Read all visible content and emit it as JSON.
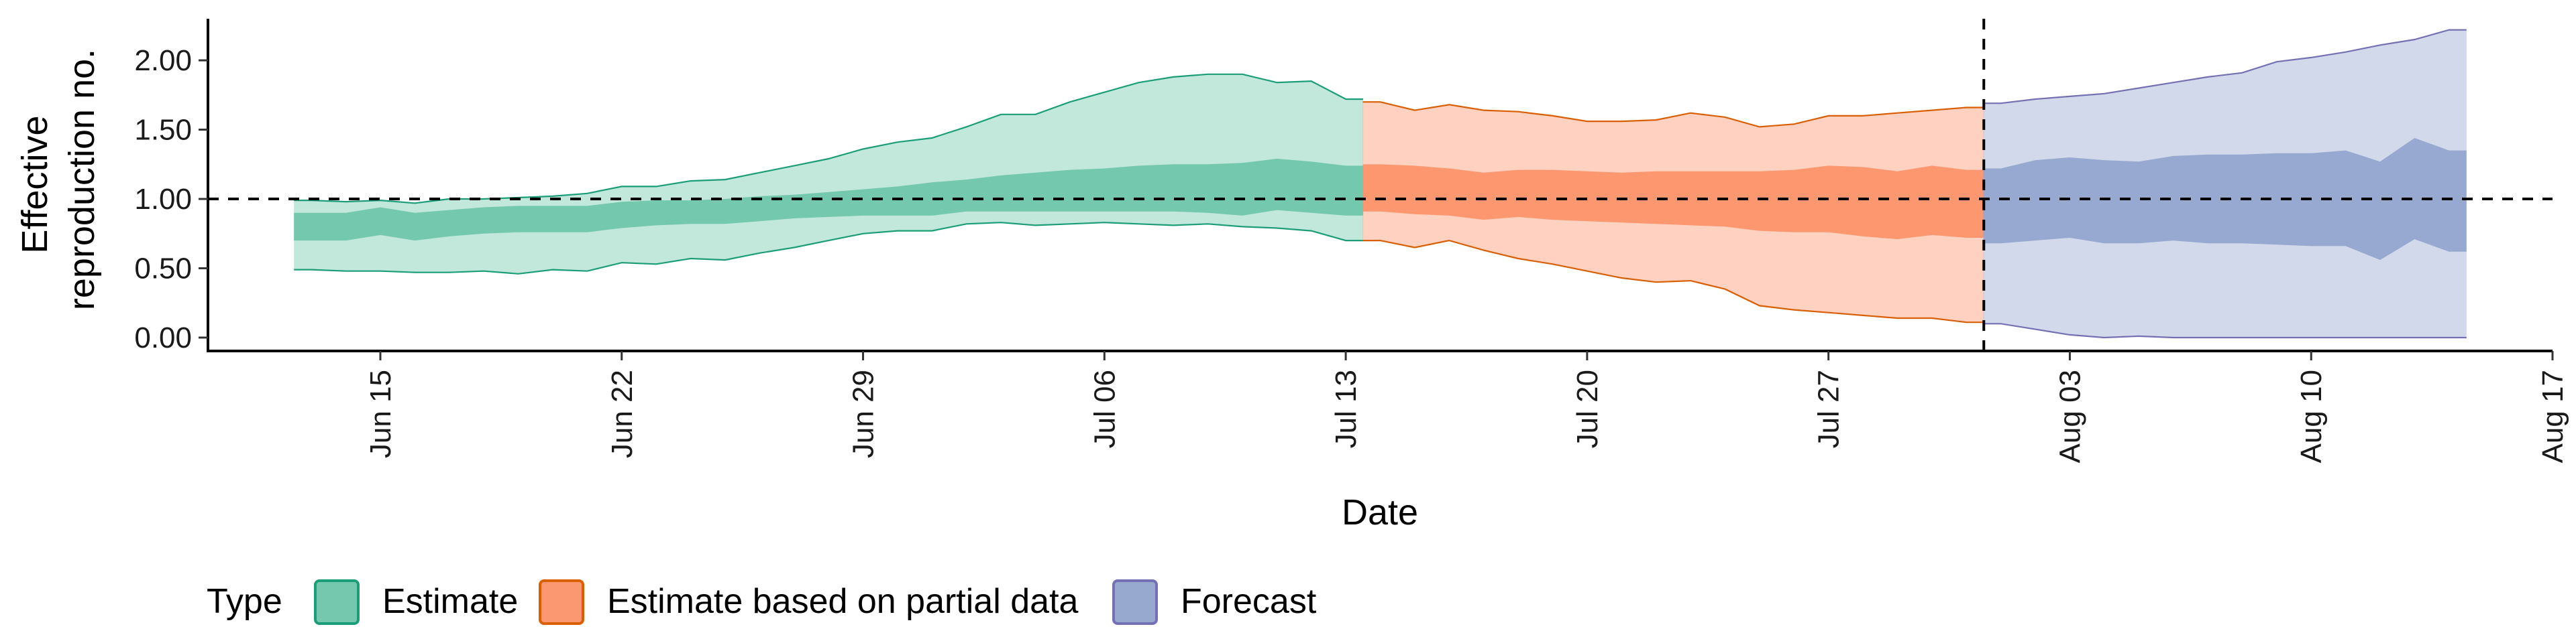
{
  "chart_data": {
    "type": "area",
    "xlabel": "Date",
    "ylabel_lines": [
      "Effective",
      "reproduction no."
    ],
    "ylim": [
      0,
      2.3
    ],
    "xlim": [
      "2020-06-10",
      "2020-08-17"
    ],
    "x_ticks": [
      {
        "date": "2020-06-15",
        "label": "Jun 15"
      },
      {
        "date": "2020-06-22",
        "label": "Jun 22"
      },
      {
        "date": "2020-06-29",
        "label": "Jun 29"
      },
      {
        "date": "2020-07-06",
        "label": "Jul 06"
      },
      {
        "date": "2020-07-13",
        "label": "Jul 13"
      },
      {
        "date": "2020-07-20",
        "label": "Jul 20"
      },
      {
        "date": "2020-07-27",
        "label": "Jul 27"
      },
      {
        "date": "2020-08-03",
        "label": "Aug 03"
      },
      {
        "date": "2020-08-10",
        "label": "Aug 10"
      },
      {
        "date": "2020-08-17",
        "label": "Aug 17"
      }
    ],
    "y_ticks": [
      {
        "value": 0,
        "label": "0.00"
      },
      {
        "value": 0.5,
        "label": "0.50"
      },
      {
        "value": 1,
        "label": "1.00"
      },
      {
        "value": 1.5,
        "label": "1.50"
      },
      {
        "value": 2,
        "label": "2.00"
      }
    ],
    "reference_hline": 1.0,
    "reference_vline": "2020-07-31",
    "legend": {
      "title": "Type",
      "position": "bottom"
    },
    "series": [
      {
        "name": "Estimate",
        "fill": "#66c2a5",
        "stroke": "#1b9e77",
        "points": [
          {
            "date": "2020-06-13",
            "lo90": 0.49,
            "lo50": 0.7,
            "hi50": 0.9,
            "hi90": 0.99
          },
          {
            "date": "2020-06-14",
            "lo90": 0.48,
            "lo50": 0.7,
            "hi50": 0.9,
            "hi90": 0.98
          },
          {
            "date": "2020-06-15",
            "lo90": 0.48,
            "lo50": 0.74,
            "hi50": 0.94,
            "hi90": 0.99
          },
          {
            "date": "2020-06-16",
            "lo90": 0.47,
            "lo50": 0.7,
            "hi50": 0.9,
            "hi90": 0.97
          },
          {
            "date": "2020-06-17",
            "lo90": 0.47,
            "lo50": 0.73,
            "hi50": 0.92,
            "hi90": 1.0
          },
          {
            "date": "2020-06-18",
            "lo90": 0.48,
            "lo50": 0.75,
            "hi50": 0.94,
            "hi90": 1.0
          },
          {
            "date": "2020-06-19",
            "lo90": 0.46,
            "lo50": 0.76,
            "hi50": 0.95,
            "hi90": 1.01
          },
          {
            "date": "2020-06-20",
            "lo90": 0.49,
            "lo50": 0.76,
            "hi50": 0.95,
            "hi90": 1.02
          },
          {
            "date": "2020-06-21",
            "lo90": 0.48,
            "lo50": 0.76,
            "hi50": 0.95,
            "hi90": 1.04
          },
          {
            "date": "2020-06-22",
            "lo90": 0.54,
            "lo50": 0.79,
            "hi50": 0.98,
            "hi90": 1.09
          },
          {
            "date": "2020-06-23",
            "lo90": 0.53,
            "lo50": 0.81,
            "hi50": 0.99,
            "hi90": 1.09
          },
          {
            "date": "2020-06-24",
            "lo90": 0.57,
            "lo50": 0.82,
            "hi50": 0.99,
            "hi90": 1.13
          },
          {
            "date": "2020-06-25",
            "lo90": 0.56,
            "lo50": 0.82,
            "hi50": 1.0,
            "hi90": 1.14
          },
          {
            "date": "2020-06-26",
            "lo90": 0.61,
            "lo50": 0.84,
            "hi50": 1.02,
            "hi90": 1.19
          },
          {
            "date": "2020-06-27",
            "lo90": 0.65,
            "lo50": 0.86,
            "hi50": 1.03,
            "hi90": 1.24
          },
          {
            "date": "2020-06-28",
            "lo90": 0.7,
            "lo50": 0.87,
            "hi50": 1.05,
            "hi90": 1.29
          },
          {
            "date": "2020-06-29",
            "lo90": 0.75,
            "lo50": 0.88,
            "hi50": 1.07,
            "hi90": 1.36
          },
          {
            "date": "2020-06-30",
            "lo90": 0.77,
            "lo50": 0.88,
            "hi50": 1.09,
            "hi90": 1.41
          },
          {
            "date": "2020-07-01",
            "lo90": 0.77,
            "lo50": 0.88,
            "hi50": 1.12,
            "hi90": 1.44
          },
          {
            "date": "2020-07-02",
            "lo90": 0.82,
            "lo50": 0.91,
            "hi50": 1.14,
            "hi90": 1.52
          },
          {
            "date": "2020-07-03",
            "lo90": 0.83,
            "lo50": 0.91,
            "hi50": 1.17,
            "hi90": 1.61
          },
          {
            "date": "2020-07-04",
            "lo90": 0.81,
            "lo50": 0.91,
            "hi50": 1.19,
            "hi90": 1.61
          },
          {
            "date": "2020-07-05",
            "lo90": 0.82,
            "lo50": 0.91,
            "hi50": 1.21,
            "hi90": 1.7
          },
          {
            "date": "2020-07-06",
            "lo90": 0.83,
            "lo50": 0.91,
            "hi50": 1.22,
            "hi90": 1.77
          },
          {
            "date": "2020-07-07",
            "lo90": 0.82,
            "lo50": 0.91,
            "hi50": 1.24,
            "hi90": 1.84
          },
          {
            "date": "2020-07-08",
            "lo90": 0.81,
            "lo50": 0.91,
            "hi50": 1.25,
            "hi90": 1.88
          },
          {
            "date": "2020-07-09",
            "lo90": 0.82,
            "lo50": 0.9,
            "hi50": 1.25,
            "hi90": 1.9
          },
          {
            "date": "2020-07-10",
            "lo90": 0.8,
            "lo50": 0.88,
            "hi50": 1.26,
            "hi90": 1.9
          },
          {
            "date": "2020-07-11",
            "lo90": 0.79,
            "lo50": 0.92,
            "hi50": 1.29,
            "hi90": 1.84
          },
          {
            "date": "2020-07-12",
            "lo90": 0.77,
            "lo50": 0.9,
            "hi50": 1.27,
            "hi90": 1.85
          },
          {
            "date": "2020-07-13",
            "lo90": 0.7,
            "lo50": 0.88,
            "hi50": 1.24,
            "hi90": 1.72
          }
        ]
      },
      {
        "name": "Estimate based on partial data",
        "fill": "#fc8d62",
        "stroke": "#d95f02",
        "points": [
          {
            "date": "2020-07-14",
            "lo90": 0.7,
            "lo50": 0.91,
            "hi50": 1.25,
            "hi90": 1.7
          },
          {
            "date": "2020-07-15",
            "lo90": 0.65,
            "lo50": 0.89,
            "hi50": 1.24,
            "hi90": 1.64
          },
          {
            "date": "2020-07-16",
            "lo90": 0.7,
            "lo50": 0.88,
            "hi50": 1.22,
            "hi90": 1.68
          },
          {
            "date": "2020-07-17",
            "lo90": 0.63,
            "lo50": 0.85,
            "hi50": 1.19,
            "hi90": 1.64
          },
          {
            "date": "2020-07-18",
            "lo90": 0.57,
            "lo50": 0.87,
            "hi50": 1.21,
            "hi90": 1.63
          },
          {
            "date": "2020-07-19",
            "lo90": 0.53,
            "lo50": 0.85,
            "hi50": 1.21,
            "hi90": 1.6
          },
          {
            "date": "2020-07-20",
            "lo90": 0.48,
            "lo50": 0.84,
            "hi50": 1.2,
            "hi90": 1.56
          },
          {
            "date": "2020-07-21",
            "lo90": 0.43,
            "lo50": 0.83,
            "hi50": 1.19,
            "hi90": 1.56
          },
          {
            "date": "2020-07-22",
            "lo90": 0.4,
            "lo50": 0.82,
            "hi50": 1.2,
            "hi90": 1.57
          },
          {
            "date": "2020-07-23",
            "lo90": 0.41,
            "lo50": 0.81,
            "hi50": 1.2,
            "hi90": 1.62
          },
          {
            "date": "2020-07-24",
            "lo90": 0.35,
            "lo50": 0.8,
            "hi50": 1.2,
            "hi90": 1.59
          },
          {
            "date": "2020-07-25",
            "lo90": 0.23,
            "lo50": 0.77,
            "hi50": 1.2,
            "hi90": 1.52
          },
          {
            "date": "2020-07-26",
            "lo90": 0.2,
            "lo50": 0.76,
            "hi50": 1.21,
            "hi90": 1.54
          },
          {
            "date": "2020-07-27",
            "lo90": 0.18,
            "lo50": 0.76,
            "hi50": 1.24,
            "hi90": 1.6
          },
          {
            "date": "2020-07-28",
            "lo90": 0.16,
            "lo50": 0.73,
            "hi50": 1.23,
            "hi90": 1.6
          },
          {
            "date": "2020-07-29",
            "lo90": 0.14,
            "lo50": 0.71,
            "hi50": 1.2,
            "hi90": 1.62
          },
          {
            "date": "2020-07-30",
            "lo90": 0.14,
            "lo50": 0.74,
            "hi50": 1.24,
            "hi90": 1.64
          },
          {
            "date": "2020-07-31",
            "lo90": 0.11,
            "lo50": 0.72,
            "hi50": 1.21,
            "hi90": 1.66
          }
        ]
      },
      {
        "name": "Forecast",
        "fill": "#8da0cb",
        "stroke": "#7570b3",
        "points": [
          {
            "date": "2020-08-01",
            "lo90": 0.1,
            "lo50": 0.68,
            "hi50": 1.22,
            "hi90": 1.69
          },
          {
            "date": "2020-08-02",
            "lo90": 0.06,
            "lo50": 0.7,
            "hi50": 1.28,
            "hi90": 1.72
          },
          {
            "date": "2020-08-03",
            "lo90": 0.02,
            "lo50": 0.72,
            "hi50": 1.3,
            "hi90": 1.74
          },
          {
            "date": "2020-08-04",
            "lo90": 0.0,
            "lo50": 0.68,
            "hi50": 1.28,
            "hi90": 1.76
          },
          {
            "date": "2020-08-05",
            "lo90": 0.01,
            "lo50": 0.68,
            "hi50": 1.27,
            "hi90": 1.8
          },
          {
            "date": "2020-08-06",
            "lo90": 0.0,
            "lo50": 0.7,
            "hi50": 1.31,
            "hi90": 1.84
          },
          {
            "date": "2020-08-07",
            "lo90": 0.0,
            "lo50": 0.68,
            "hi50": 1.32,
            "hi90": 1.88
          },
          {
            "date": "2020-08-08",
            "lo90": 0.0,
            "lo50": 0.68,
            "hi50": 1.32,
            "hi90": 1.91
          },
          {
            "date": "2020-08-09",
            "lo90": 0.0,
            "lo50": 0.67,
            "hi50": 1.33,
            "hi90": 1.99
          },
          {
            "date": "2020-08-10",
            "lo90": 0.0,
            "lo50": 0.66,
            "hi50": 1.33,
            "hi90": 2.02
          },
          {
            "date": "2020-08-11",
            "lo90": 0.0,
            "lo50": 0.66,
            "hi50": 1.35,
            "hi90": 2.06
          },
          {
            "date": "2020-08-12",
            "lo90": 0.0,
            "lo50": 0.56,
            "hi50": 1.27,
            "hi90": 2.11
          },
          {
            "date": "2020-08-13",
            "lo90": 0.0,
            "lo50": 0.71,
            "hi50": 1.44,
            "hi90": 2.15
          },
          {
            "date": "2020-08-14",
            "lo90": 0.0,
            "lo50": 0.62,
            "hi50": 1.35,
            "hi90": 2.22
          }
        ]
      }
    ]
  }
}
